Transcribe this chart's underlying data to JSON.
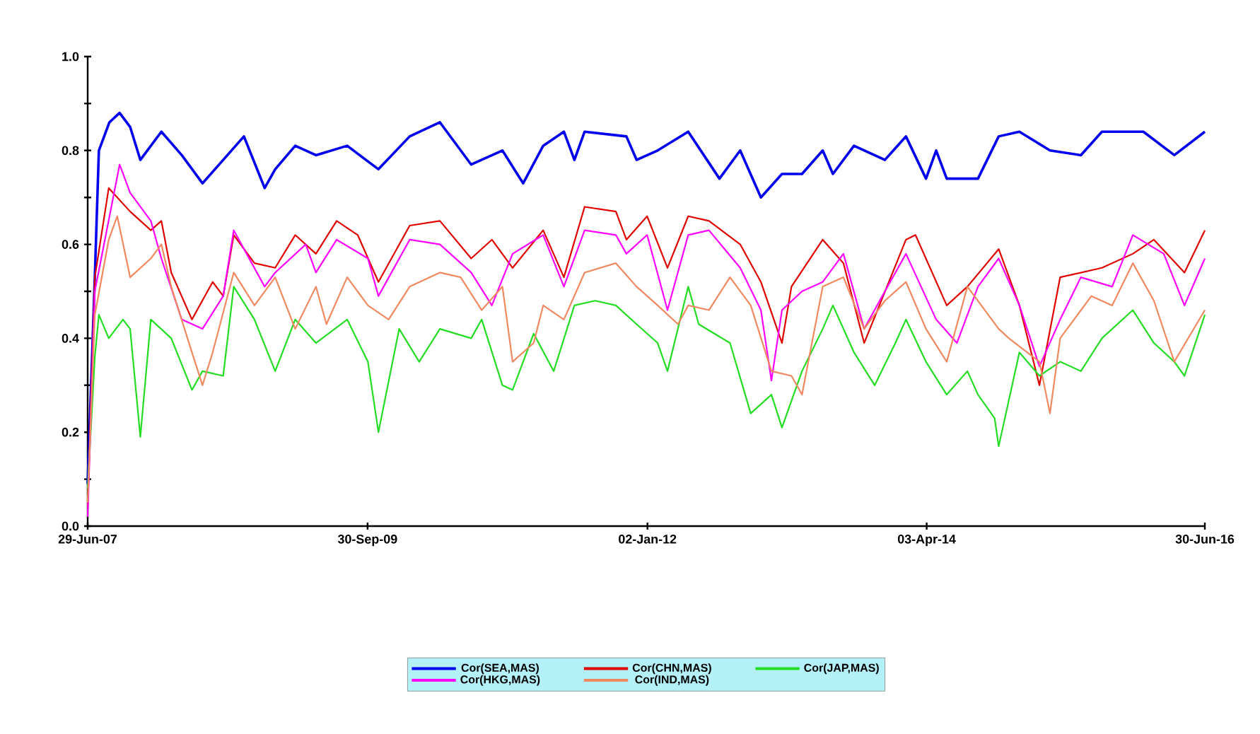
{
  "chart_data": {
    "type": "line",
    "xlim": [
      "2007-06-29",
      "2016-06-30"
    ],
    "ylim": [
      0,
      1
    ],
    "xticks": [
      {
        "value": "2007-06-29",
        "label": "29-Jun-07"
      },
      {
        "value": "2009-09-30",
        "label": "30-Sep-09"
      },
      {
        "value": "2012-01-02",
        "label": "02-Jan-12"
      },
      {
        "value": "2014-04-03",
        "label": "03-Apr-14"
      },
      {
        "value": "2016-06-30",
        "label": "30-Jun-16"
      }
    ],
    "yticks": [
      {
        "value": 0,
        "label": "0.0"
      },
      {
        "value": 0.1,
        "label": null
      },
      {
        "value": 0.2,
        "label": "0.2"
      },
      {
        "value": 0.3,
        "label": null
      },
      {
        "value": 0.4,
        "label": "0.4"
      },
      {
        "value": 0.5,
        "label": null
      },
      {
        "value": 0.6,
        "label": "0.6"
      },
      {
        "value": 0.7,
        "label": null
      },
      {
        "value": 0.8,
        "label": "0.8"
      },
      {
        "value": 0.9,
        "label": null
      },
      {
        "value": 1,
        "label": "1.0"
      }
    ],
    "legend": "bottom",
    "series": [
      {
        "name": "Cor(SEA,MAS)",
        "color": "#0000ee",
        "x": [
          "2007-06-29",
          "2007-07-20",
          "2007-08-01",
          "2007-09",
          "2007-10",
          "2007-11",
          "2007-12",
          "2008-02",
          "2008-04",
          "2008-06",
          "2008-08",
          "2008-10",
          "2008-12",
          "2009-01",
          "2009-03",
          "2009-05",
          "2009-08",
          "2009-11",
          "2010-02",
          "2010-05",
          "2010-08",
          "2010-11",
          "2011-01",
          "2011-03",
          "2011-05",
          "2011-06",
          "2011-07",
          "2011-11",
          "2011-12",
          "2012-02",
          "2012-05",
          "2012-08",
          "2012-10",
          "2012-12",
          "2013-02",
          "2013-04",
          "2013-06",
          "2013-07",
          "2013-09",
          "2013-12",
          "2014-02",
          "2014-04",
          "2014-05",
          "2014-06",
          "2014-09",
          "2014-11",
          "2015-01",
          "2015-04",
          "2015-07",
          "2015-09",
          "2016-01",
          "2016-04",
          "2016-06-30"
        ],
        "values": [
          0.09,
          0.53,
          0.8,
          0.86,
          0.88,
          0.85,
          0.78,
          0.84,
          0.79,
          0.73,
          0.78,
          0.83,
          0.72,
          0.76,
          0.81,
          0.79,
          0.81,
          0.76,
          0.83,
          0.86,
          0.77,
          0.8,
          0.73,
          0.81,
          0.84,
          0.78,
          0.84,
          0.83,
          0.78,
          0.8,
          0.84,
          0.74,
          0.8,
          0.7,
          0.75,
          0.75,
          0.8,
          0.75,
          0.81,
          0.78,
          0.83,
          0.74,
          0.8,
          0.74,
          0.74,
          0.83,
          0.84,
          0.8,
          0.79,
          0.84,
          0.84,
          0.79,
          0.84
        ]
      },
      {
        "name": "Cor(CHN,MAS)",
        "color": "#e00000",
        "x": [
          "2007-06-29",
          "2007-07-20",
          "2007-08-30",
          "2007-11",
          "2008-01",
          "2008-02",
          "2008-03",
          "2008-05",
          "2008-07",
          "2008-08",
          "2008-09",
          "2008-11",
          "2009-01",
          "2009-03",
          "2009-05",
          "2009-07",
          "2009-09",
          "2009-11",
          "2010-02",
          "2010-05",
          "2010-08",
          "2010-10",
          "2010-12",
          "2011-03",
          "2011-05",
          "2011-07",
          "2011-10",
          "2011-11",
          "2012-01",
          "2012-03",
          "2012-05",
          "2012-07",
          "2012-10",
          "2012-12",
          "2013-02",
          "2013-03",
          "2013-06",
          "2013-08",
          "2013-10",
          "2014-02",
          "2014-03",
          "2014-06",
          "2014-08",
          "2014-11",
          "2015-01",
          "2015-03",
          "2015-05",
          "2015-09",
          "2015-12",
          "2016-02",
          "2016-05",
          "2016-06-30"
        ],
        "values": [
          0.04,
          0.53,
          0.72,
          0.67,
          0.63,
          0.65,
          0.54,
          0.44,
          0.52,
          0.49,
          0.62,
          0.56,
          0.55,
          0.62,
          0.58,
          0.65,
          0.62,
          0.52,
          0.64,
          0.65,
          0.57,
          0.61,
          0.55,
          0.63,
          0.53,
          0.68,
          0.67,
          0.61,
          0.66,
          0.55,
          0.66,
          0.65,
          0.6,
          0.52,
          0.39,
          0.51,
          0.61,
          0.56,
          0.39,
          0.61,
          0.62,
          0.47,
          0.51,
          0.59,
          0.47,
          0.3,
          0.53,
          0.55,
          0.58,
          0.61,
          0.54,
          0.63
        ]
      },
      {
        "name": "Cor(JAP,MAS)",
        "color": "#22dd22",
        "x": [
          "2007-06-29",
          "2007-07-20",
          "2007-08-01",
          "2007-08-30",
          "2007-10-11",
          "2007-11",
          "2007-12",
          "2008-01",
          "2008-03",
          "2008-05",
          "2008-06",
          "2008-08",
          "2008-09",
          "2008-11",
          "2009-01",
          "2009-03",
          "2009-05",
          "2009-08",
          "2009-10",
          "2009-11",
          "2010-01",
          "2010-03",
          "2010-05",
          "2010-08",
          "2010-09",
          "2010-11",
          "2010-12",
          "2011-02",
          "2011-04",
          "2011-06",
          "2011-08",
          "2011-10",
          "2011-12",
          "2012-02",
          "2012-03",
          "2012-05",
          "2012-06",
          "2012-09",
          "2012-11",
          "2013-01",
          "2013-02",
          "2013-04",
          "2013-06",
          "2013-07",
          "2013-09",
          "2013-11",
          "2014-01",
          "2014-02",
          "2014-04",
          "2014-06",
          "2014-08",
          "2014-09",
          "2014-10-20",
          "2014-11",
          "2015-01",
          "2015-03",
          "2015-05",
          "2015-07",
          "2015-09",
          "2015-12",
          "2016-02",
          "2016-04",
          "2016-05",
          "2016-06-30"
        ],
        "values": [
          0.08,
          0.36,
          0.45,
          0.4,
          0.44,
          0.42,
          0.19,
          0.44,
          0.4,
          0.29,
          0.33,
          0.32,
          0.51,
          0.44,
          0.33,
          0.44,
          0.39,
          0.44,
          0.35,
          0.2,
          0.42,
          0.35,
          0.42,
          0.4,
          0.44,
          0.3,
          0.29,
          0.41,
          0.33,
          0.47,
          0.48,
          0.47,
          0.43,
          0.39,
          0.33,
          0.51,
          0.43,
          0.39,
          0.24,
          0.28,
          0.21,
          0.33,
          0.42,
          0.47,
          0.37,
          0.3,
          0.39,
          0.44,
          0.35,
          0.28,
          0.33,
          0.28,
          0.23,
          0.17,
          0.37,
          0.32,
          0.35,
          0.33,
          0.4,
          0.46,
          0.39,
          0.35,
          0.32,
          0.45
        ]
      },
      {
        "name": "Cor(HKG,MAS)",
        "color": "#ff00ff",
        "x": [
          "2007-06-29",
          "2007-07-20",
          "2007-10",
          "2007-11",
          "2008-01",
          "2008-02",
          "2008-04",
          "2008-06",
          "2008-08",
          "2008-09",
          "2008-12",
          "2009-01",
          "2009-04",
          "2009-05",
          "2009-07",
          "2009-10",
          "2009-11",
          "2010-02",
          "2010-05",
          "2010-08",
          "2010-10",
          "2010-12",
          "2011-03",
          "2011-05",
          "2011-07",
          "2011-10",
          "2011-11",
          "2012-01",
          "2012-03",
          "2012-05",
          "2012-07",
          "2012-10",
          "2012-12",
          "2013-01",
          "2013-02",
          "2013-04",
          "2013-06",
          "2013-08",
          "2013-10",
          "2013-12",
          "2014-02",
          "2014-05",
          "2014-07",
          "2014-09",
          "2014-11",
          "2015-01",
          "2015-03",
          "2015-05",
          "2015-07",
          "2015-10",
          "2015-12",
          "2016-03",
          "2016-05",
          "2016-06-30"
        ],
        "values": [
          0.02,
          0.5,
          0.77,
          0.71,
          0.65,
          0.57,
          0.44,
          0.42,
          0.49,
          0.63,
          0.51,
          0.54,
          0.6,
          0.54,
          0.61,
          0.57,
          0.49,
          0.61,
          0.6,
          0.54,
          0.47,
          0.58,
          0.62,
          0.51,
          0.63,
          0.62,
          0.58,
          0.62,
          0.46,
          0.62,
          0.63,
          0.55,
          0.46,
          0.31,
          0.46,
          0.5,
          0.52,
          0.58,
          0.42,
          0.5,
          0.58,
          0.44,
          0.39,
          0.51,
          0.57,
          0.47,
          0.34,
          0.44,
          0.53,
          0.51,
          0.62,
          0.58,
          0.47,
          0.57
        ]
      },
      {
        "name": "Cor(IND,MAS)",
        "color": "#f08860",
        "x": [
          "2007-06-29",
          "2007-07-20",
          "2007-08-30",
          "2007-09-24",
          "2007-11",
          "2008-01",
          "2008-02",
          "2008-03",
          "2008-05",
          "2008-06",
          "2008-07",
          "2008-09",
          "2008-11",
          "2009-01",
          "2009-03",
          "2009-05",
          "2009-06",
          "2009-08",
          "2009-10",
          "2009-12",
          "2010-02",
          "2010-05",
          "2010-07",
          "2010-09",
          "2010-11",
          "2010-12",
          "2011-02",
          "2011-03",
          "2011-05",
          "2011-07",
          "2011-10",
          "2011-12",
          "2012-02",
          "2012-04",
          "2012-05",
          "2012-07",
          "2012-09",
          "2012-11",
          "2013-01",
          "2013-03",
          "2013-04",
          "2013-06",
          "2013-08",
          "2013-10",
          "2013-12",
          "2014-02",
          "2014-04",
          "2014-06",
          "2014-08",
          "2014-11",
          "2014-12",
          "2015-03",
          "2015-04",
          "2015-05",
          "2015-08",
          "2015-10",
          "2015-12",
          "2016-02",
          "2016-04",
          "2016-06-30"
        ],
        "values": [
          0.05,
          0.45,
          0.61,
          0.66,
          0.53,
          0.57,
          0.6,
          0.51,
          0.37,
          0.3,
          0.37,
          0.54,
          0.47,
          0.53,
          0.42,
          0.51,
          0.43,
          0.53,
          0.47,
          0.44,
          0.51,
          0.54,
          0.53,
          0.46,
          0.51,
          0.35,
          0.39,
          0.47,
          0.44,
          0.54,
          0.56,
          0.51,
          0.47,
          0.43,
          0.47,
          0.46,
          0.53,
          0.47,
          0.33,
          0.32,
          0.28,
          0.51,
          0.53,
          0.42,
          0.48,
          0.52,
          0.42,
          0.35,
          0.51,
          0.42,
          0.4,
          0.35,
          0.24,
          0.4,
          0.49,
          0.47,
          0.56,
          0.48,
          0.35,
          0.46
        ]
      }
    ]
  }
}
